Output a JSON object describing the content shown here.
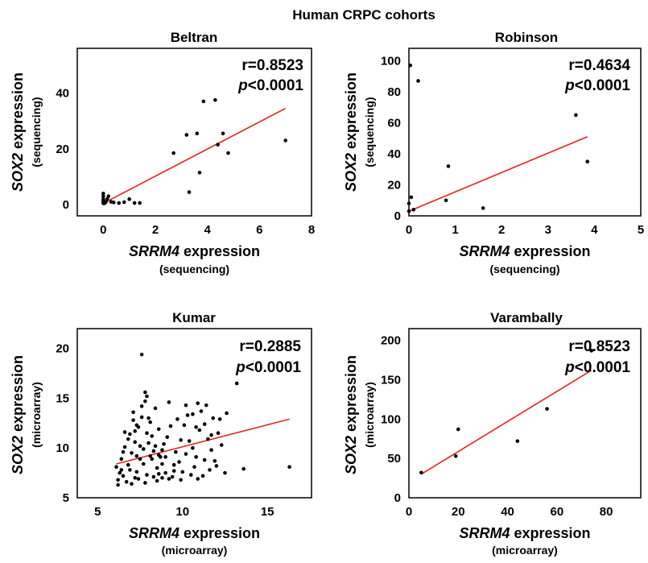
{
  "figure_title": "Human CRPC cohorts",
  "chart_data": [
    {
      "type": "scatter",
      "title": "Beltran",
      "xlabel": {
        "gene": "SRRM4",
        "rest": " expression",
        "unit": "(sequencing)"
      },
      "ylabel": {
        "gene": "SOX2",
        "rest": " expression",
        "unit": "(sequencing)"
      },
      "xlim": [
        -1,
        8
      ],
      "ylim": [
        -4,
        56
      ],
      "xticks": [
        0,
        2,
        4,
        6,
        8
      ],
      "yticks": [
        0,
        20,
        40
      ],
      "r_text": "r=0.8523",
      "p_italic": "p",
      "p_rest": "<0.0001",
      "fit": [
        [
          0,
          0.5
        ],
        [
          7.0,
          34.5
        ]
      ],
      "points": [
        [
          0,
          0.5
        ],
        [
          0,
          1
        ],
        [
          0,
          1.5
        ],
        [
          0,
          2
        ],
        [
          0,
          3
        ],
        [
          0,
          4
        ],
        [
          0.05,
          0.5
        ],
        [
          0.1,
          1
        ],
        [
          0.15,
          2
        ],
        [
          0.2,
          3
        ],
        [
          0.3,
          1
        ],
        [
          0.4,
          0.8
        ],
        [
          0.6,
          0.6
        ],
        [
          0.8,
          0.9
        ],
        [
          1.0,
          2
        ],
        [
          1.2,
          0.6
        ],
        [
          1.4,
          0.6
        ],
        [
          2.7,
          18.5
        ],
        [
          3.2,
          25
        ],
        [
          3.6,
          25.5
        ],
        [
          3.3,
          4.5
        ],
        [
          3.7,
          11.5
        ],
        [
          3.85,
          37
        ],
        [
          4.3,
          37.5
        ],
        [
          4.4,
          21.5
        ],
        [
          4.6,
          25.5
        ],
        [
          4.8,
          18.5
        ],
        [
          7.0,
          23
        ]
      ]
    },
    {
      "type": "scatter",
      "title": "Robinson",
      "xlabel": {
        "gene": "SRRM4",
        "rest": " expression",
        "unit": "(sequencing)"
      },
      "ylabel": {
        "gene": "SOX2",
        "rest": " expression",
        "unit": "(sequencing)"
      },
      "xlim": [
        0,
        5
      ],
      "ylim": [
        0,
        108
      ],
      "xticks": [
        0,
        1,
        2,
        3,
        4,
        5
      ],
      "yticks": [
        0,
        20,
        40,
        60,
        80,
        100
      ],
      "r_text": "r=0.4634",
      "p_italic": "p",
      "p_rest": "<0.0001",
      "fit": [
        [
          0,
          3
        ],
        [
          3.85,
          51
        ]
      ],
      "points": [
        [
          0.03,
          97
        ],
        [
          0.2,
          87
        ],
        [
          0.05,
          12
        ],
        [
          0,
          8
        ],
        [
          0.1,
          4
        ],
        [
          0,
          3
        ],
        [
          0.8,
          10
        ],
        [
          0.85,
          32
        ],
        [
          1.6,
          5
        ],
        [
          3.6,
          65
        ],
        [
          3.85,
          35
        ]
      ]
    },
    {
      "type": "scatter",
      "title": "Kumar",
      "xlabel": {
        "gene": "SRRM4",
        "rest": " expression",
        "unit": "(microarray)"
      },
      "ylabel": {
        "gene": "SOX2",
        "rest": " expression",
        "unit": "(microarray)"
      },
      "xlim": [
        3.8,
        17.6
      ],
      "ylim": [
        5,
        22
      ],
      "xticks": [
        5,
        10,
        15
      ],
      "yticks": [
        5,
        10,
        15,
        20
      ],
      "r_text": "r=0.2885",
      "p_italic": "p",
      "p_rest": "<0.0001",
      "fit": [
        [
          6.1,
          8.4
        ],
        [
          16.3,
          12.9
        ]
      ],
      "points": [
        [
          7.6,
          19.4
        ],
        [
          13.2,
          16.5
        ],
        [
          13.6,
          7.9
        ],
        [
          16.3,
          8.1
        ],
        [
          6.2,
          6.8
        ],
        [
          6.5,
          7.2
        ],
        [
          6.8,
          8.3
        ],
        [
          7.0,
          9.5
        ],
        [
          7.2,
          10.6
        ],
        [
          7.4,
          12.1
        ],
        [
          7.1,
          13.6
        ],
        [
          7.6,
          14.2
        ],
        [
          7.8,
          15.6
        ],
        [
          8.0,
          13.0
        ],
        [
          8.2,
          11.2
        ],
        [
          8.4,
          10.2
        ],
        [
          8.6,
          9.3
        ],
        [
          8.8,
          8.4
        ],
        [
          9.0,
          7.5
        ],
        [
          9.2,
          6.9
        ],
        [
          9.5,
          7.7
        ],
        [
          9.8,
          8.6
        ],
        [
          10.2,
          9.4
        ],
        [
          10.4,
          10.7
        ],
        [
          10.6,
          13.4
        ],
        [
          10.9,
          14.5
        ],
        [
          11.1,
          13.7
        ],
        [
          11.3,
          12.4
        ],
        [
          11.0,
          11.8
        ],
        [
          11.5,
          10.9
        ],
        [
          11.7,
          9.8
        ],
        [
          11.9,
          8.7
        ],
        [
          11.6,
          7.8
        ],
        [
          11.2,
          7.2
        ],
        [
          6.4,
          8.9
        ],
        [
          6.6,
          10.1
        ],
        [
          6.9,
          11.4
        ],
        [
          7.1,
          12.8
        ],
        [
          7.3,
          7.6
        ],
        [
          7.5,
          8.9
        ],
        [
          7.7,
          9.9
        ],
        [
          7.9,
          11.5
        ],
        [
          8.1,
          12.6
        ],
        [
          8.3,
          7.1
        ],
        [
          8.5,
          8.0
        ],
        [
          8.7,
          9.1
        ],
        [
          8.9,
          10.4
        ],
        [
          9.1,
          11.1
        ],
        [
          9.3,
          12.2
        ],
        [
          9.6,
          9.6
        ],
        [
          9.9,
          10.8
        ],
        [
          10.1,
          12.3
        ],
        [
          10.3,
          13.3
        ],
        [
          10.5,
          7.3
        ],
        [
          10.7,
          8.1
        ],
        [
          10.8,
          9.1
        ],
        [
          11.4,
          14.3
        ],
        [
          11.8,
          13.0
        ],
        [
          12.1,
          11.5
        ],
        [
          12.3,
          10.3
        ],
        [
          6.3,
          7.5
        ],
        [
          6.7,
          6.6
        ],
        [
          7.4,
          6.9
        ],
        [
          7.9,
          7.3
        ],
        [
          8.6,
          7.4
        ],
        [
          9.4,
          7.1
        ],
        [
          10.0,
          7.6
        ],
        [
          10.9,
          6.9
        ],
        [
          6.5,
          9.6
        ],
        [
          6.8,
          10.9
        ],
        [
          7.2,
          11.7
        ],
        [
          7.6,
          13.1
        ],
        [
          7.8,
          14.7
        ],
        [
          8.0,
          10.5
        ],
        [
          8.3,
          9.7
        ],
        [
          8.6,
          11.9
        ],
        [
          9.7,
          12.9
        ],
        [
          10.2,
          14.3
        ],
        [
          6.1,
          8.1
        ],
        [
          6.9,
          7.8
        ],
        [
          7.3,
          9.2
        ],
        [
          7.7,
          8.4
        ],
        [
          8.2,
          8.9
        ],
        [
          8.8,
          9.8
        ],
        [
          9.5,
          8.3
        ],
        [
          11.3,
          8.8
        ],
        [
          12.0,
          8.2
        ],
        [
          12.5,
          7.5
        ],
        [
          6.2,
          6.3
        ],
        [
          7.0,
          6.4
        ],
        [
          7.8,
          6.5
        ],
        [
          8.5,
          6.7
        ],
        [
          6.6,
          11.6
        ],
        [
          7.3,
          12.3
        ],
        [
          7.5,
          10.2
        ],
        [
          8.1,
          9.2
        ],
        [
          9.0,
          9.1
        ],
        [
          10.6,
          10.0
        ],
        [
          11.7,
          11.3
        ],
        [
          12.2,
          12.9
        ],
        [
          12.6,
          13.5
        ],
        [
          6.4,
          7.8
        ],
        [
          7.2,
          7.0
        ],
        [
          8.8,
          7.0
        ],
        [
          9.9,
          6.8
        ],
        [
          7.9,
          15.2
        ],
        [
          8.4,
          14.0
        ],
        [
          9.2,
          14.6
        ],
        [
          10.8,
          12.1
        ]
      ]
    },
    {
      "type": "scatter",
      "title": "Varambally",
      "xlabel": {
        "gene": "SRRM4",
        "rest": " expression",
        "unit": "(microarray)"
      },
      "ylabel": {
        "gene": "SOX2",
        "rest": " expression",
        "unit": "(microarray)"
      },
      "xlim": [
        0,
        94
      ],
      "ylim": [
        0,
        215
      ],
      "xticks": [
        0,
        20,
        40,
        60,
        80
      ],
      "yticks": [
        0,
        50,
        100,
        150,
        200
      ],
      "r_text": "r=0.8523",
      "p_italic": "p",
      "p_rest": "<0.0001",
      "fit": [
        [
          5,
          30
        ],
        [
          74,
          162
        ]
      ],
      "points": [
        [
          5,
          32
        ],
        [
          19,
          53
        ],
        [
          20,
          87
        ],
        [
          44,
          72
        ],
        [
          56,
          113
        ],
        [
          74,
          187
        ]
      ]
    }
  ]
}
